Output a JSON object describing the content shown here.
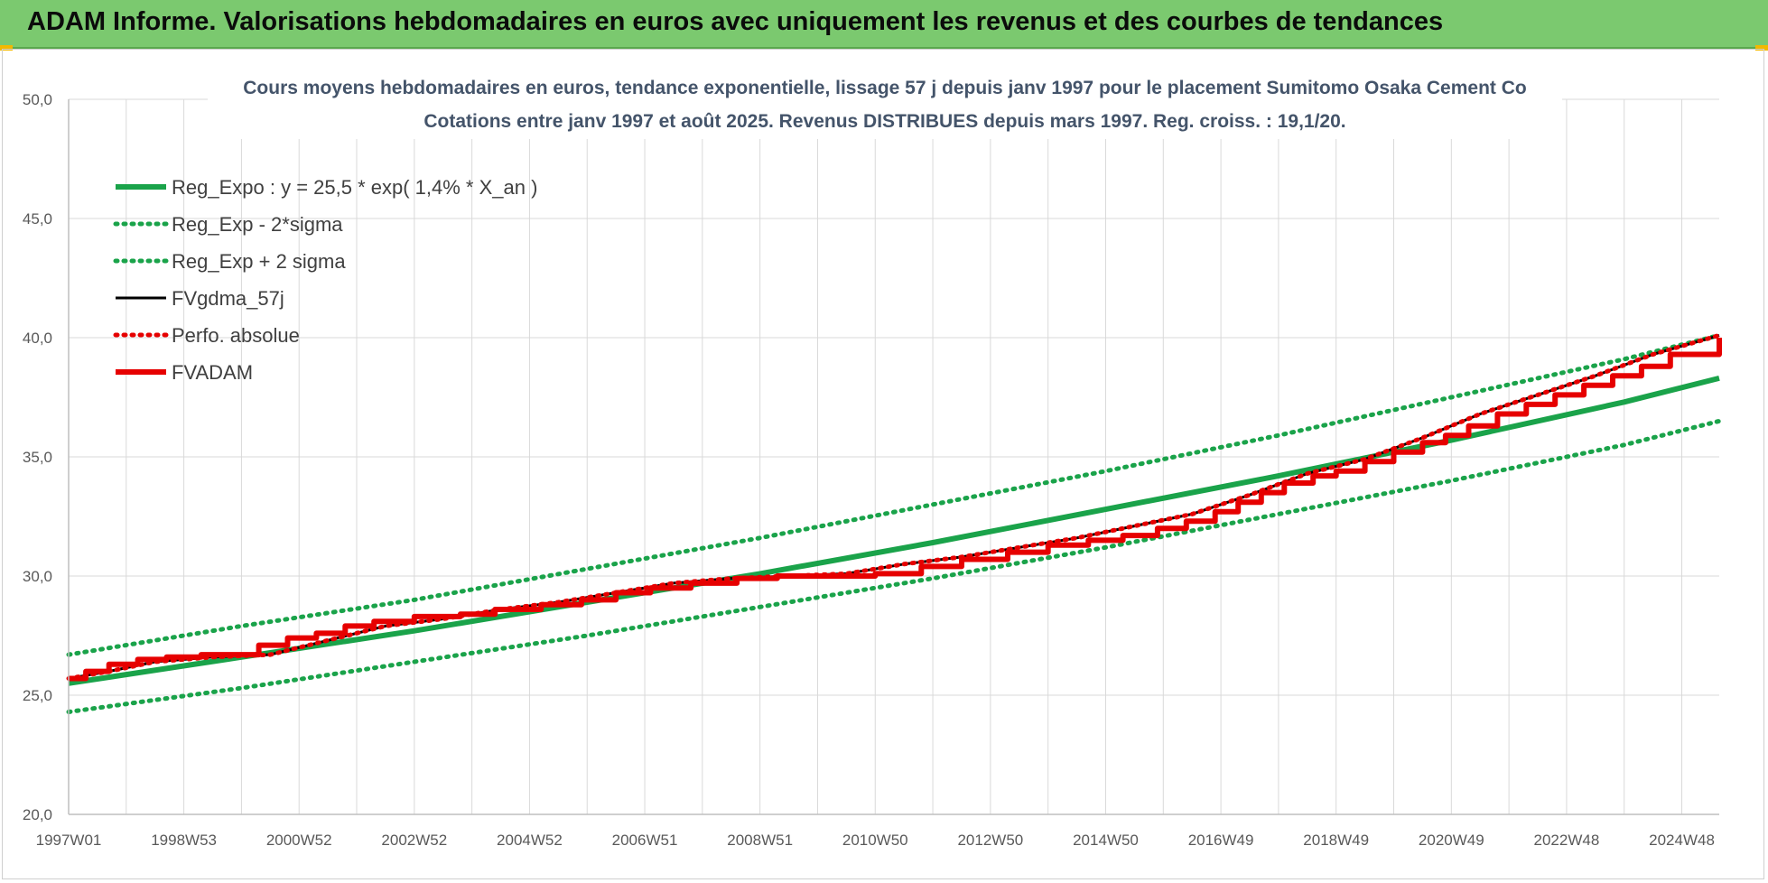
{
  "banner": {
    "title": "ADAM Informe. Valorisations hebdomadaires en euros avec uniquement les revenus et des courbes de tendances"
  },
  "colors": {
    "banner": "#7bc96f",
    "trend": "#1aa34a",
    "fv": "#000000",
    "adam": "#e60000",
    "grid": "#d9d9d9"
  },
  "chart_data": {
    "type": "line",
    "title": "Cours moyens hebdomadaires en euros, tendance exponentielle, lissage 57 j depuis janv 1997 pour le placement Sumitomo Osaka Cement Co",
    "subtitle": "Cotations entre janv 1997 et août 2025.  Revenus DISTRIBUES depuis mars 1997. Reg. croiss. : 19,1/20.",
    "xlabel": "",
    "ylabel": "",
    "ylim": [
      20,
      50
    ],
    "xlim": [
      1997.0,
      2025.65
    ],
    "y_ticks": [
      "20,0",
      "25,0",
      "30,0",
      "35,0",
      "40,0",
      "45,0",
      "50,0"
    ],
    "x_ticks": [
      {
        "label": "1997W01",
        "x": 1997.0
      },
      {
        "label": "1998W53",
        "x": 1999.0
      },
      {
        "label": "2000W52",
        "x": 2001.0
      },
      {
        "label": "2002W52",
        "x": 2003.0
      },
      {
        "label": "2004W52",
        "x": 2005.0
      },
      {
        "label": "2006W51",
        "x": 2007.0
      },
      {
        "label": "2008W51",
        "x": 2009.0
      },
      {
        "label": "2010W50",
        "x": 2011.0
      },
      {
        "label": "2012W50",
        "x": 2013.0
      },
      {
        "label": "2014W50",
        "x": 2015.0
      },
      {
        "label": "2016W49",
        "x": 2017.0
      },
      {
        "label": "2018W49",
        "x": 2019.0
      },
      {
        "label": "2020W49",
        "x": 2021.0
      },
      {
        "label": "2022W48",
        "x": 2023.0
      },
      {
        "label": "2024W48",
        "x": 2025.0
      }
    ],
    "grid": true,
    "legend_position": "top-left",
    "series": [
      {
        "name": "Reg_Expo : y = 25,5 * exp( 1,4% *  X_an )",
        "style": "solid",
        "color": "#1aa34a",
        "x": [
          1997.0,
          2000.0,
          2003.0,
          2006.0,
          2009.0,
          2012.0,
          2015.0,
          2018.0,
          2021.0,
          2024.0,
          2025.65
        ],
        "values": [
          25.5,
          26.6,
          27.7,
          28.9,
          30.1,
          31.4,
          32.8,
          34.2,
          35.7,
          37.3,
          38.3
        ]
      },
      {
        "name": "Reg_Exp - 2*sigma",
        "style": "dotted",
        "color": "#1aa34a",
        "x": [
          1997.0,
          2000.0,
          2003.0,
          2006.0,
          2009.0,
          2012.0,
          2015.0,
          2018.0,
          2021.0,
          2024.0,
          2025.65
        ],
        "values": [
          24.3,
          25.3,
          26.4,
          27.5,
          28.7,
          29.9,
          31.2,
          32.6,
          34.0,
          35.5,
          36.5
        ]
      },
      {
        "name": "Reg_Exp + 2 sigma",
        "style": "dotted",
        "color": "#1aa34a",
        "x": [
          1997.0,
          2000.0,
          2003.0,
          2006.0,
          2009.0,
          2012.0,
          2015.0,
          2018.0,
          2021.0,
          2024.0,
          2025.65
        ],
        "values": [
          26.7,
          27.9,
          29.0,
          30.3,
          31.6,
          33.0,
          34.4,
          35.9,
          37.5,
          39.1,
          40.1
        ]
      },
      {
        "name": "FVgdma_57j",
        "style": "solid",
        "color": "#000000",
        "x": [
          1997.0,
          1997.7,
          1998.5,
          1999.5,
          2000.5,
          2001.5,
          2002.5,
          2003.5,
          2004.5,
          2005.5,
          2006.5,
          2007.5,
          2008.5,
          2009.5,
          2010.5,
          2011.5,
          2012.5,
          2013.5,
          2014.5,
          2015.5,
          2016.5,
          2017.5,
          2018.5,
          2019.5,
          2020.5,
          2021.5,
          2022.5,
          2023.5,
          2024.5,
          2025.65
        ],
        "values": [
          25.7,
          26.0,
          26.4,
          26.6,
          26.7,
          27.3,
          27.9,
          28.2,
          28.6,
          28.9,
          29.3,
          29.7,
          29.9,
          30.0,
          30.1,
          30.5,
          30.8,
          31.2,
          31.6,
          32.1,
          32.6,
          33.4,
          34.3,
          34.9,
          35.8,
          36.8,
          37.6,
          38.4,
          39.3,
          40.1
        ]
      },
      {
        "name": "Perfo. absolue",
        "style": "dotted",
        "color": "#e60000",
        "x": [
          1997.0,
          1997.7,
          1998.5,
          1999.5,
          2000.5,
          2001.5,
          2002.5,
          2003.5,
          2004.5,
          2005.5,
          2006.5,
          2007.5,
          2008.5,
          2009.5,
          2010.5,
          2011.5,
          2012.5,
          2013.5,
          2014.5,
          2015.5,
          2016.5,
          2017.5,
          2018.5,
          2019.5,
          2020.5,
          2021.5,
          2022.5,
          2023.5,
          2024.5,
          2025.65
        ],
        "values": [
          25.7,
          26.0,
          26.4,
          26.6,
          26.7,
          27.3,
          27.9,
          28.2,
          28.6,
          28.9,
          29.3,
          29.7,
          29.9,
          30.0,
          30.1,
          30.5,
          30.8,
          31.2,
          31.6,
          32.1,
          32.6,
          33.4,
          34.3,
          34.9,
          35.8,
          36.8,
          37.6,
          38.4,
          39.3,
          40.1
        ]
      },
      {
        "name": "FVADAM",
        "style": "step",
        "color": "#e60000",
        "x": [
          1997.0,
          1997.3,
          1997.7,
          1998.2,
          1998.7,
          1999.3,
          1999.9,
          2000.3,
          2000.8,
          2001.3,
          2001.8,
          2002.3,
          2003.0,
          2003.8,
          2004.4,
          2005.2,
          2005.9,
          2006.5,
          2007.1,
          2007.8,
          2008.6,
          2009.3,
          2010.3,
          2011.0,
          2011.8,
          2012.5,
          2013.3,
          2014.0,
          2014.7,
          2015.3,
          2015.9,
          2016.4,
          2016.9,
          2017.3,
          2017.7,
          2018.1,
          2018.6,
          2019.0,
          2019.5,
          2020.0,
          2020.5,
          2020.9,
          2021.3,
          2021.8,
          2022.3,
          2022.8,
          2023.3,
          2023.8,
          2024.3,
          2024.8,
          2025.65
        ],
        "values": [
          25.7,
          26.0,
          26.3,
          26.5,
          26.6,
          26.7,
          26.7,
          27.1,
          27.4,
          27.6,
          27.9,
          28.1,
          28.3,
          28.4,
          28.6,
          28.8,
          29.0,
          29.3,
          29.5,
          29.7,
          29.9,
          30.0,
          30.0,
          30.1,
          30.4,
          30.7,
          31.0,
          31.3,
          31.5,
          31.7,
          32.0,
          32.3,
          32.7,
          33.1,
          33.5,
          33.9,
          34.2,
          34.4,
          34.8,
          35.2,
          35.6,
          35.9,
          36.3,
          36.8,
          37.2,
          37.6,
          38.0,
          38.4,
          38.8,
          39.3,
          40.0
        ]
      }
    ]
  }
}
